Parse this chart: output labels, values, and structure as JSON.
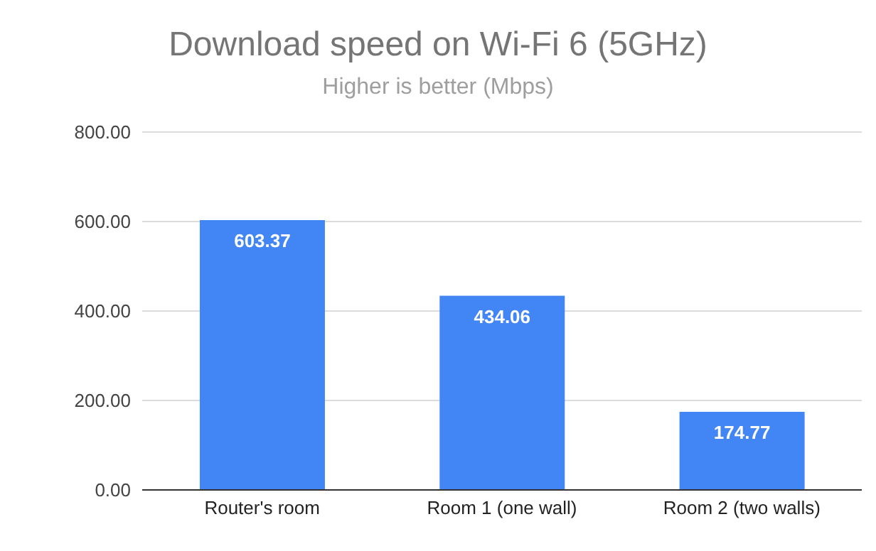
{
  "chart_data": {
    "type": "bar",
    "title": "Download speed on Wi-Fi 6 (5GHz)",
    "subtitle": "Higher is better (Mbps)",
    "categories": [
      "Router's room",
      "Room 1 (one wall)",
      "Room 2 (two walls)"
    ],
    "values": [
      603.37,
      434.06,
      174.77
    ],
    "color": "#4285f4",
    "ylim": [
      0,
      800
    ],
    "yticks": [
      {
        "value": 0,
        "label": "0.00"
      },
      {
        "value": 200,
        "label": "200.00"
      },
      {
        "value": 400,
        "label": "400.00"
      },
      {
        "value": 600,
        "label": "600.00"
      },
      {
        "value": 800,
        "label": "800.00"
      }
    ],
    "grid": "y",
    "data_labels": true
  }
}
